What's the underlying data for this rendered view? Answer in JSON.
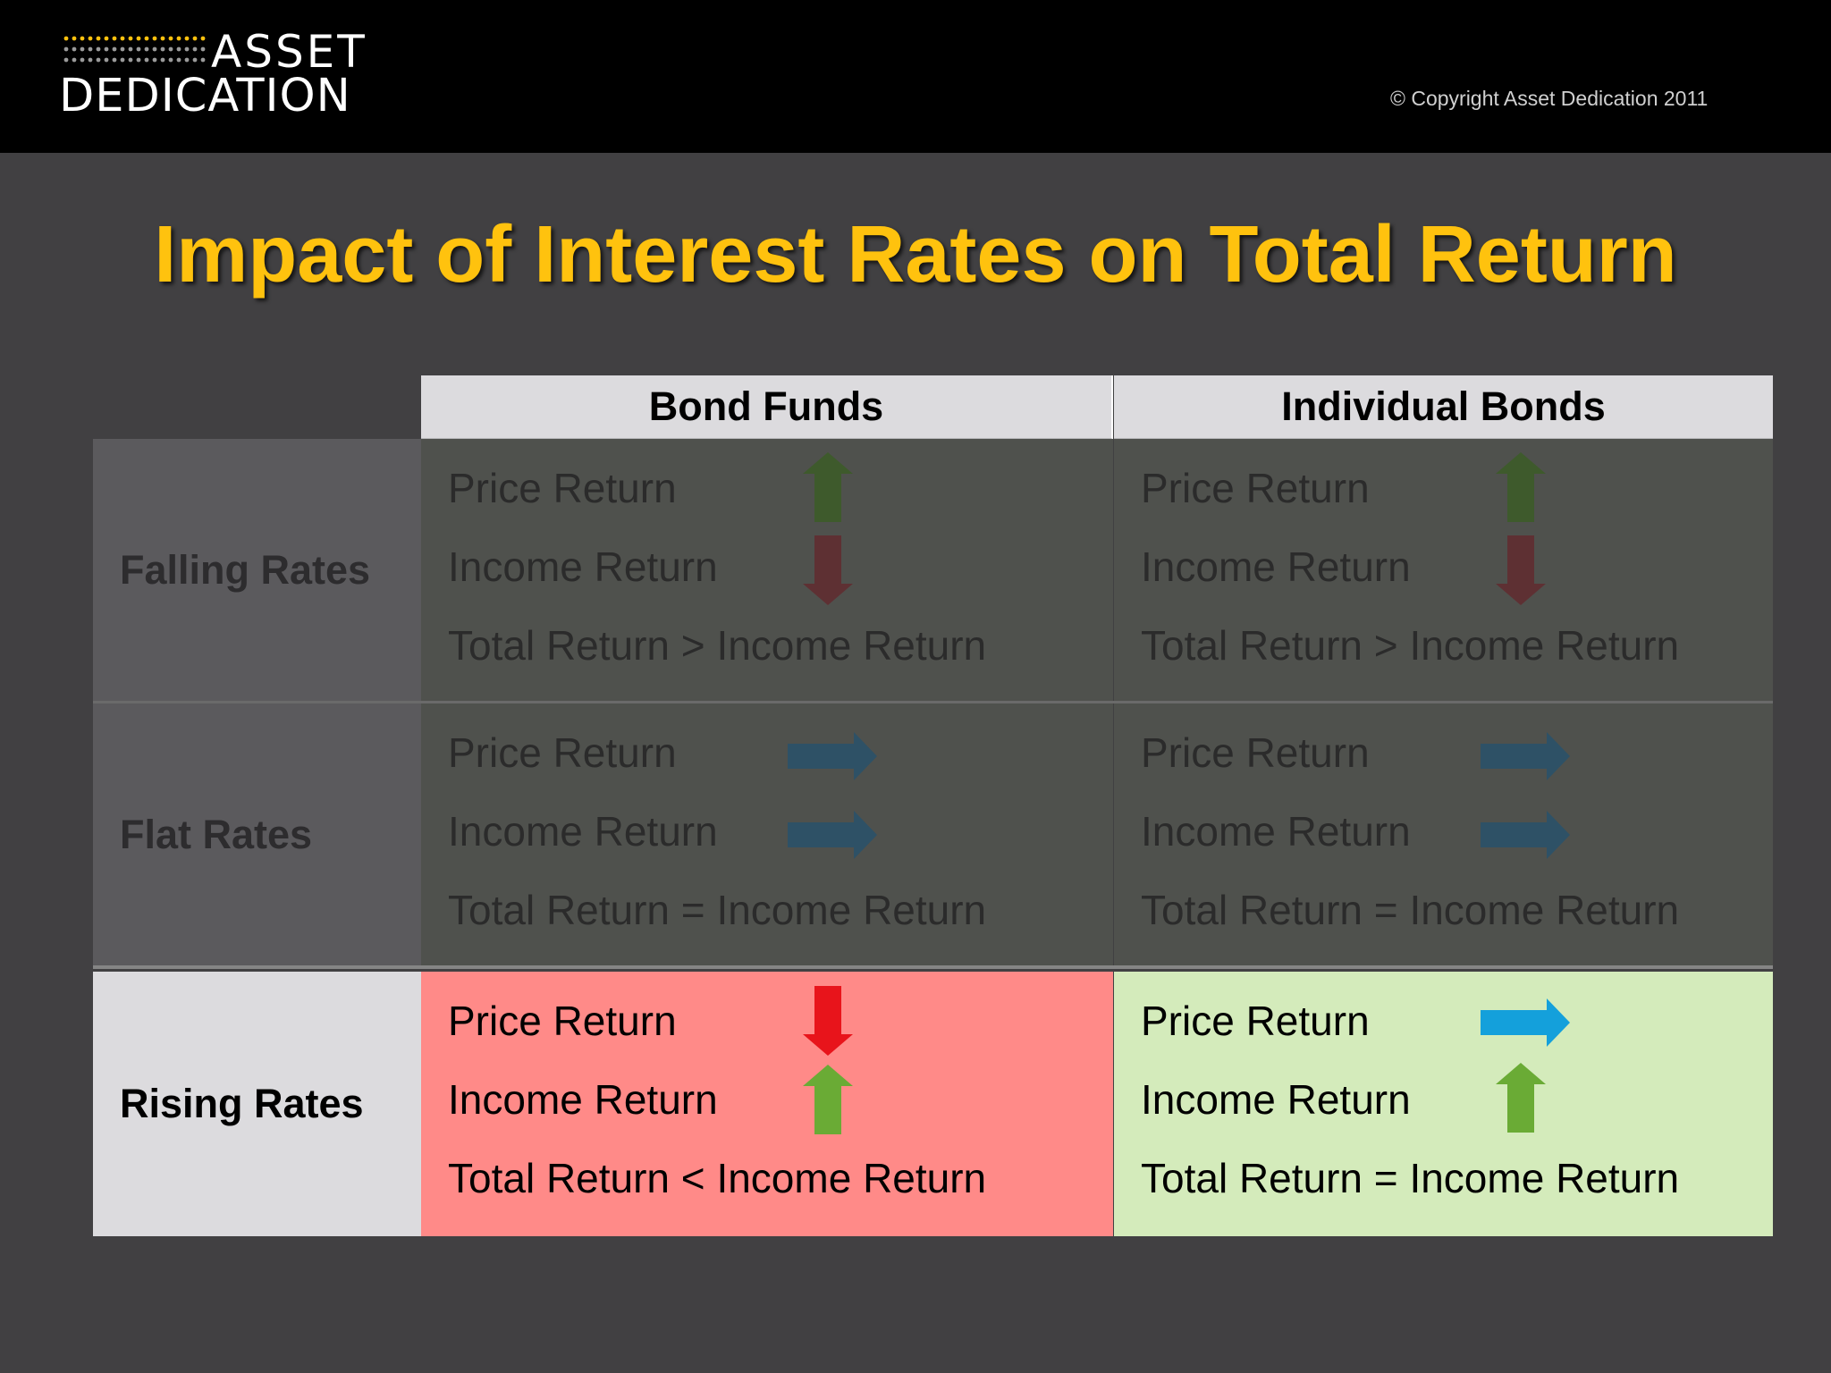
{
  "header": {
    "logo_line1": "ASSET",
    "logo_line2": "DEDICATION",
    "copyright": "© Copyright Asset Dedication 2011"
  },
  "title": "Impact of Interest Rates on Total Return",
  "columns": [
    "Bond Funds",
    "Individual Bonds"
  ],
  "rows": [
    {
      "label": "Falling Rates",
      "bond_funds": {
        "price": "Price Return",
        "income": "Income Return",
        "total": "Total Return > Income Return"
      },
      "individual_bonds": {
        "price": "Price Return",
        "income": "Income Return",
        "total": "Total Return > Income Return"
      },
      "arrows": {
        "bf_price": "up-arrow",
        "bf_income": "down-arrow",
        "ib_price": "up-arrow",
        "ib_income": "down-arrow"
      }
    },
    {
      "label": "Flat Rates",
      "bond_funds": {
        "price": "Price Return",
        "income": "Income Return",
        "total": "Total Return = Income Return"
      },
      "individual_bonds": {
        "price": "Price Return",
        "income": "Income Return",
        "total": "Total Return = Income Return"
      },
      "arrows": {
        "bf_price": "right-arrow",
        "bf_income": "right-arrow",
        "ib_price": "right-arrow",
        "ib_income": "right-arrow"
      }
    },
    {
      "label": "Rising Rates",
      "bond_funds": {
        "price": "Price Return",
        "income": "Income Return",
        "total": "Total Return < Income Return"
      },
      "individual_bonds": {
        "price": "Price Return",
        "income": "Income Return",
        "total": "Total Return = Income Return"
      },
      "arrows": {
        "bf_price": "down-arrow",
        "bf_income": "up-arrow",
        "ib_price": "right-arrow",
        "ib_income": "up-arrow"
      }
    }
  ],
  "colors": {
    "title": "#ffc20e",
    "background": "#414042",
    "rising_bond_funds": "#ff8a88",
    "rising_individual_bonds": "#d4ebbb",
    "arrow_green": "#6aab35",
    "arrow_red": "#e8141b",
    "arrow_blue": "#14a0db"
  }
}
